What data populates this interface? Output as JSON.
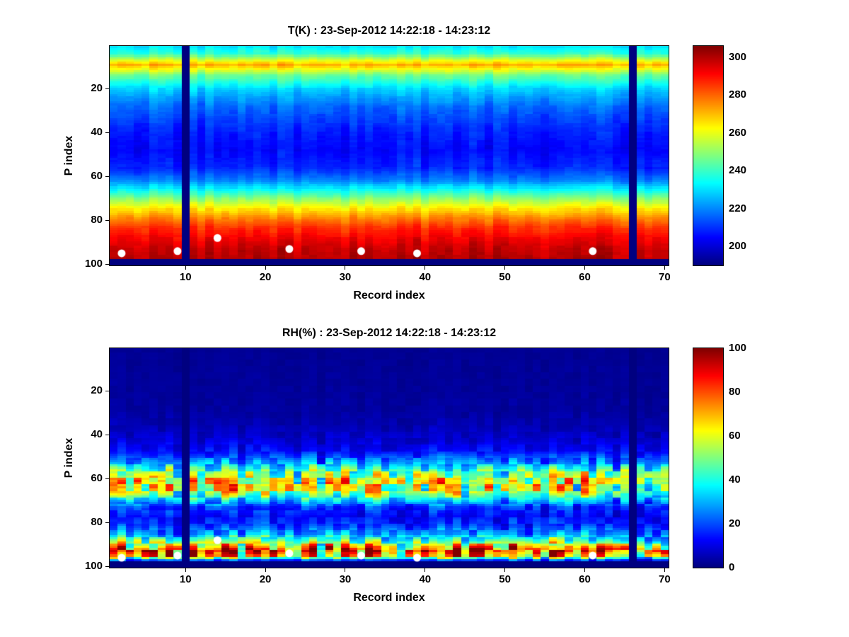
{
  "figure": {
    "background_color": "#ffffff",
    "marker_color": "#ffffff",
    "axis_color": "#000000"
  },
  "chart_data": [
    {
      "type": "heatmap",
      "name": "temperature",
      "title": "T(K) : 23-Sep-2012 14:22:18 - 14:23:12",
      "xlabel": "Record index",
      "ylabel": "P index",
      "x_range": [
        1,
        70
      ],
      "y_range": [
        1,
        100
      ],
      "y_axis_reversed": true,
      "x_ticks": [
        10,
        20,
        30,
        40,
        50,
        60,
        70
      ],
      "y_ticks": [
        20,
        40,
        60,
        80,
        100
      ],
      "colormap": "jet",
      "clim": [
        190,
        306
      ],
      "colorbar_ticks": [
        200,
        220,
        240,
        260,
        280,
        300
      ],
      "colorbar_position": "right",
      "missing_record_columns": [
        10,
        66
      ],
      "missing_rows_from": 98,
      "profile": {
        "p": [
          1,
          4,
          7,
          9,
          11,
          14,
          20,
          28,
          38,
          48,
          56,
          62,
          67,
          71,
          75,
          79,
          83,
          88,
          93,
          97,
          100
        ],
        "value": [
          231,
          239,
          260,
          272,
          262,
          246,
          229,
          217,
          209,
          205,
          209,
          220,
          238,
          253,
          266,
          277,
          286,
          293,
          298,
          300,
          300
        ]
      },
      "texture": {
        "mode": "additive",
        "col": 7,
        "blob": 3,
        "cell": 2,
        "blob_rows": 4
      },
      "markers": {
        "shape": "circle",
        "color": "#ffffff",
        "points": [
          [
            2,
            95
          ],
          [
            9,
            94
          ],
          [
            14,
            88
          ],
          [
            23,
            93
          ],
          [
            32,
            94
          ],
          [
            39,
            95
          ],
          [
            61,
            94
          ]
        ]
      }
    },
    {
      "type": "heatmap",
      "name": "relative-humidity",
      "title": "RH(%) : 23-Sep-2012 14:22:18 - 14:23:12",
      "xlabel": "Record index",
      "ylabel": "P index",
      "x_range": [
        1,
        70
      ],
      "y_range": [
        1,
        100
      ],
      "y_axis_reversed": true,
      "x_ticks": [
        10,
        20,
        30,
        40,
        50,
        60,
        70
      ],
      "y_ticks": [
        20,
        40,
        60,
        80,
        100
      ],
      "colormap": "jet",
      "clim": [
        0,
        100
      ],
      "colorbar_ticks": [
        0,
        20,
        40,
        60,
        80,
        100
      ],
      "colorbar_position": "right",
      "missing_record_columns": [
        10,
        66
      ],
      "missing_rows_from": 98,
      "profile": {
        "p": [
          1,
          28,
          36,
          42,
          48,
          53,
          57,
          61,
          65,
          69,
          73,
          77,
          81,
          85,
          88,
          91,
          93,
          95,
          97,
          100
        ],
        "value": [
          2,
          3,
          5,
          8,
          14,
          28,
          50,
          62,
          58,
          38,
          18,
          13,
          17,
          27,
          45,
          68,
          83,
          70,
          20,
          2
        ]
      },
      "texture": {
        "mode": "multiplicative",
        "base": 0.3,
        "col": 0.5,
        "blob": 0.7,
        "cell": 0.15,
        "blob_rows": 3
      },
      "markers": {
        "shape": "circle",
        "color": "#ffffff",
        "points": [
          [
            2,
            96
          ],
          [
            9,
            95
          ],
          [
            14,
            88
          ],
          [
            23,
            94
          ],
          [
            32,
            95
          ],
          [
            39,
            96
          ],
          [
            61,
            95
          ]
        ]
      }
    }
  ]
}
